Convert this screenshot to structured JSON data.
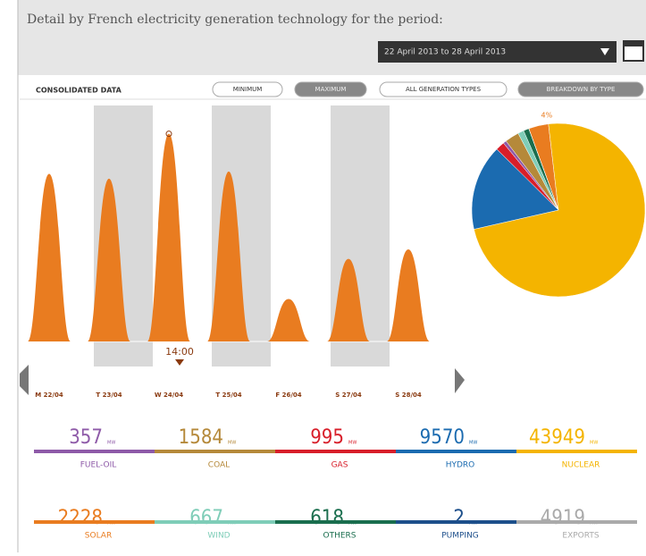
{
  "header": {
    "title": "Detail by French electricity generation technology for the period:",
    "date_range": "22 April 2013  to  28 April 2013"
  },
  "controls": {
    "section_label": "CONSOLIDATED DATA",
    "buttons": [
      "MINIMUM",
      "MAXIMUM",
      "ALL GENERATION TYPES",
      "BREAKDOWN BY TYPE"
    ]
  },
  "chart_data": [
    {
      "type": "area",
      "categories": [
        "M 22/04",
        "T 23/04",
        "W 24/04",
        "T 25/04",
        "F 26/04",
        "S 27/04",
        "S 28/04"
      ],
      "values": [
        71,
        69,
        88,
        72,
        18,
        35,
        39
      ],
      "color": "#e97c20",
      "ylim": [
        0,
        100
      ],
      "annotation": "14:00"
    },
    {
      "type": "pie",
      "categories": [
        "FUEL-OIL",
        "COAL",
        "GAS",
        "HYDRO",
        "NUCLEAR",
        "SOLAR",
        "WIND",
        "OTHERS",
        "PUMPING"
      ],
      "values": [
        357,
        1584,
        995,
        9570,
        43949,
        2228,
        667,
        618,
        2
      ],
      "value_labels": [
        null,
        null,
        null,
        null,
        null,
        "4%",
        null,
        null,
        null
      ],
      "colors": [
        "#8e5aa8",
        "#b5893a",
        "#d81e2a",
        "#1b6bb0",
        "#f4b400",
        "#e97c20",
        "#7fcdb8",
        "#1a6e4e",
        "#1d4f8b"
      ],
      "unit": "MW"
    }
  ],
  "exports": {
    "name": "EXPORTS",
    "value": 4919,
    "color": "#aaaaaa"
  }
}
